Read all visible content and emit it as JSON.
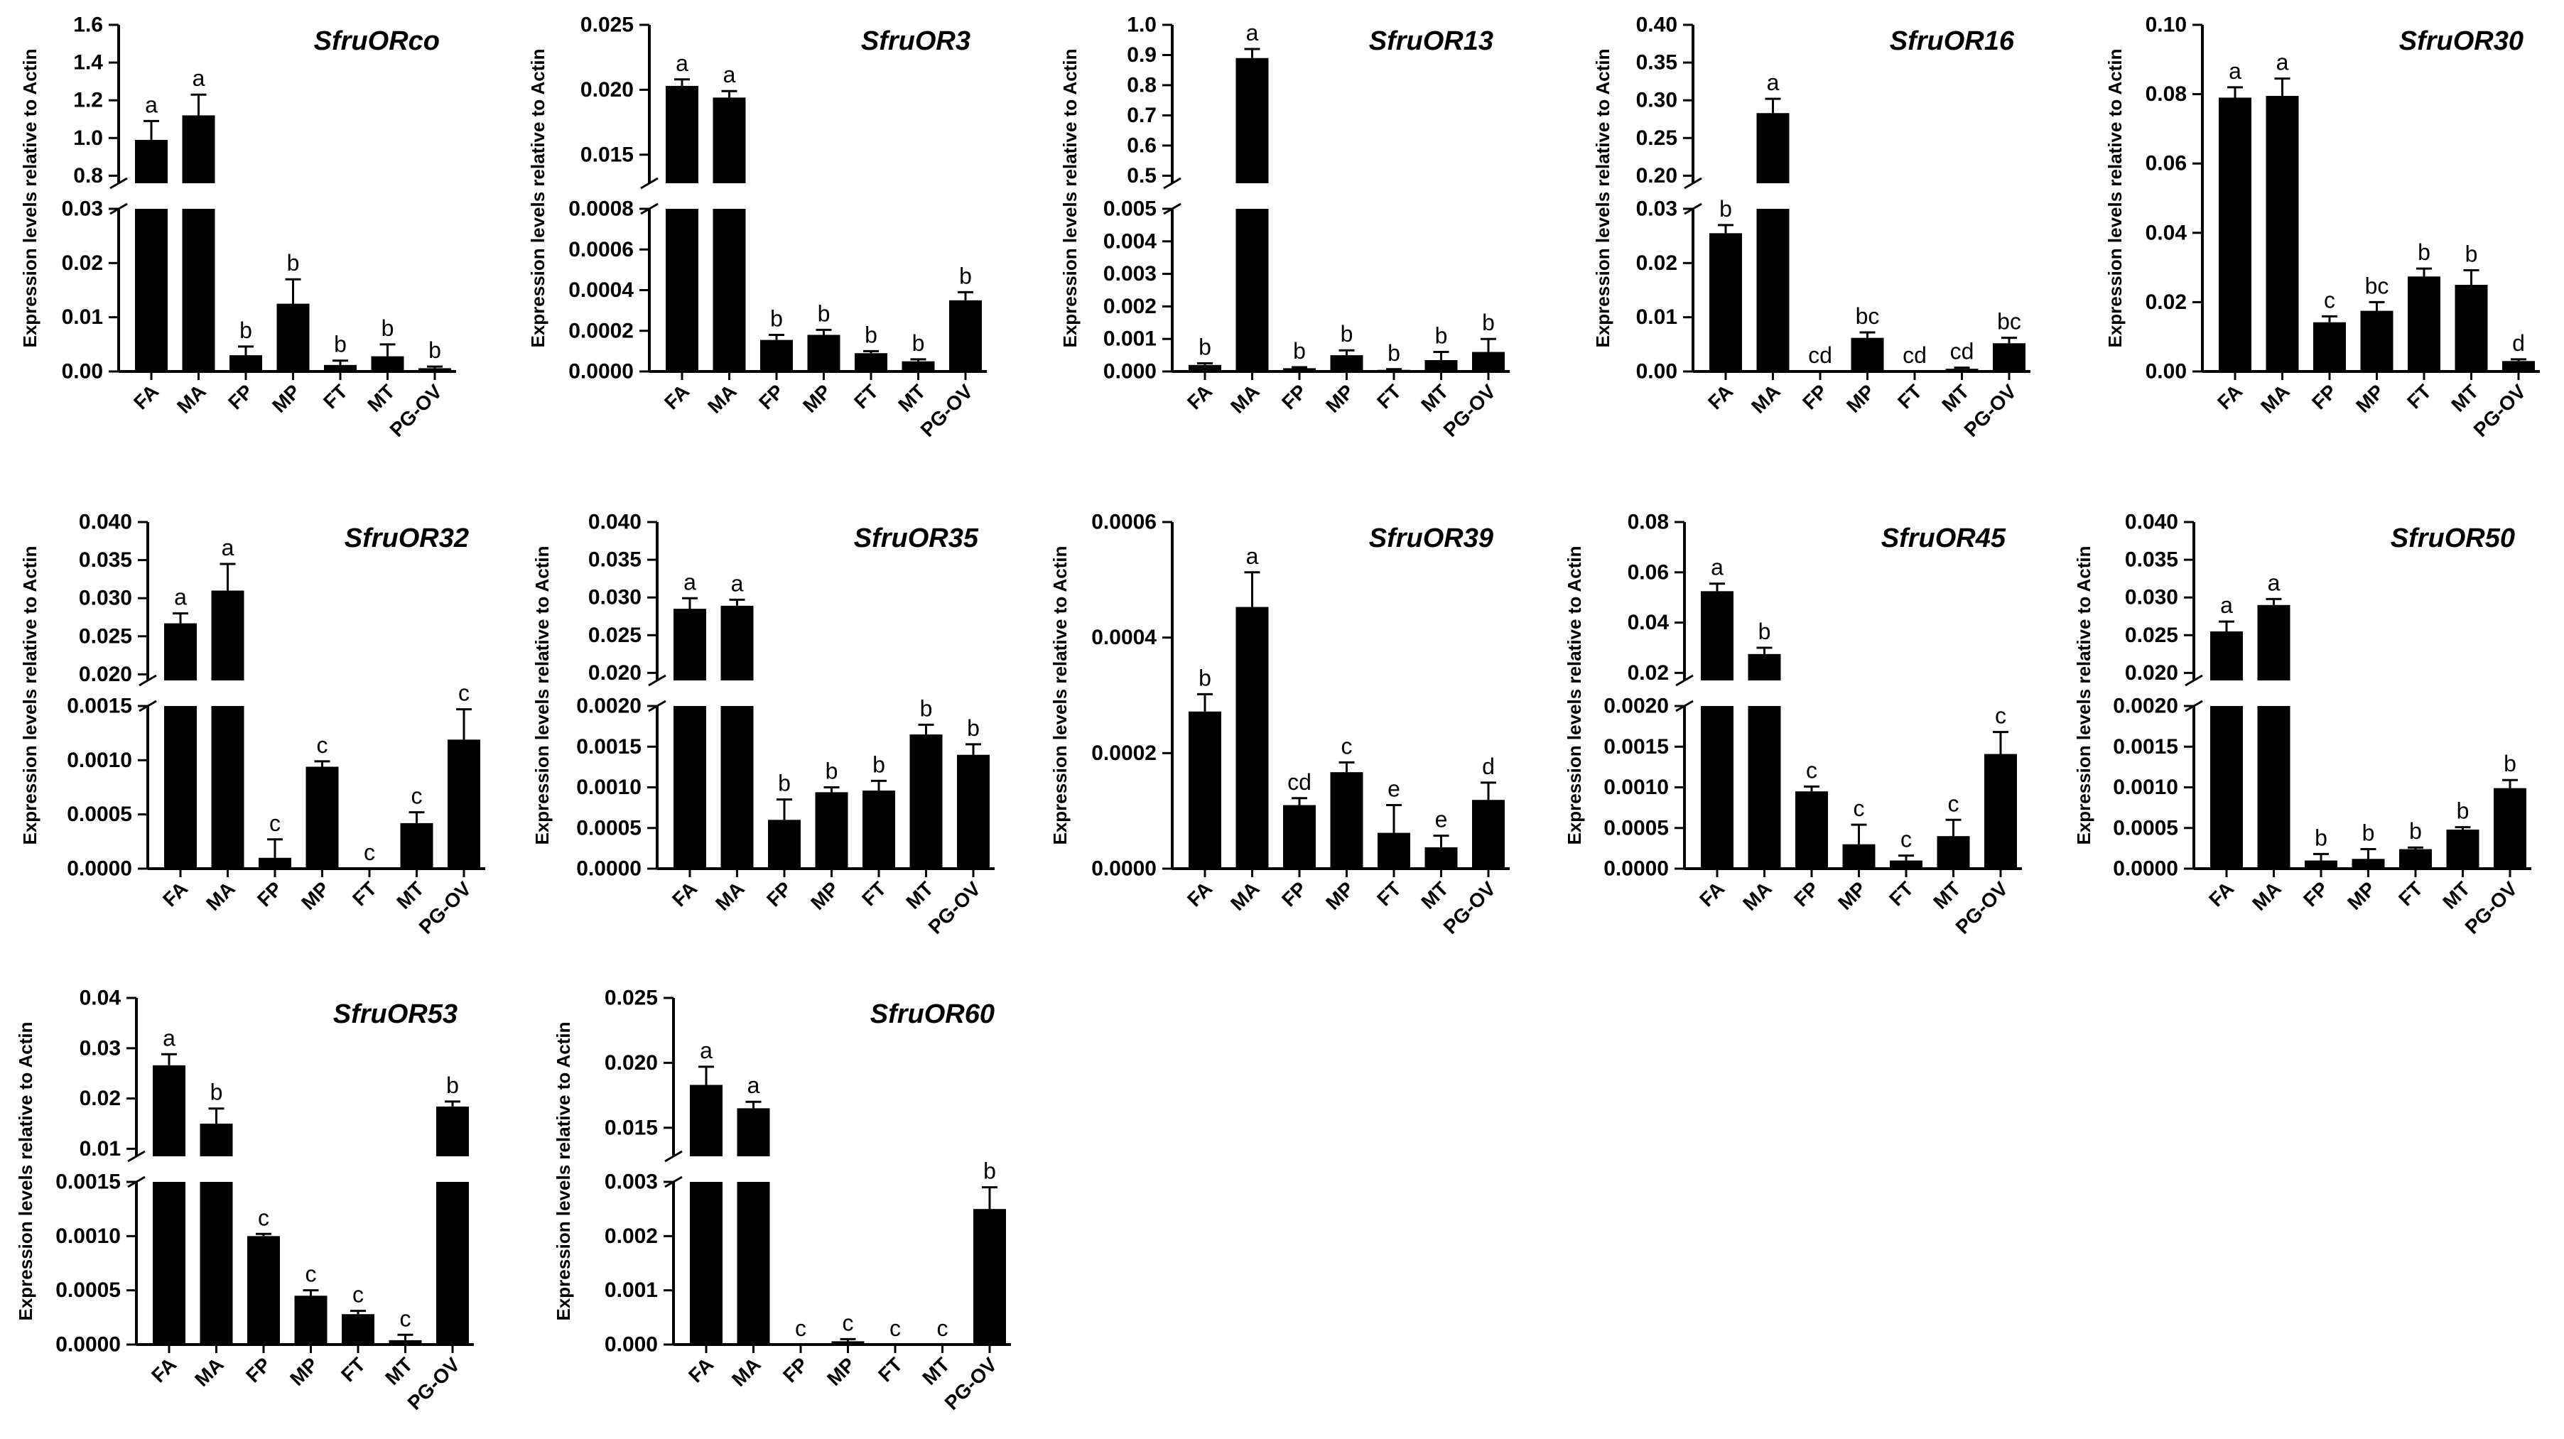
{
  "colors": {
    "bar": "#000000",
    "axis": "#000000",
    "background": "#ffffff"
  },
  "chart_data": [
    {
      "type": "bar",
      "title": "SfruORco",
      "ylabel": "Expression levels relative to Actin",
      "categories": [
        "FA",
        "MA",
        "FP",
        "MP",
        "FT",
        "MT",
        "PG-OV"
      ],
      "values": [
        0.99,
        1.12,
        0.003,
        0.0125,
        0.0012,
        0.0028,
        0.0006
      ],
      "errors": [
        0.1,
        0.11,
        0.0016,
        0.0045,
        0.0008,
        0.0022,
        0.0003
      ],
      "letters": [
        "a",
        "a",
        "b",
        "b",
        "b",
        "b",
        "b"
      ],
      "y_broken": true,
      "ylim_lower": [
        0,
        0.03
      ],
      "ylim_upper": [
        0.76,
        1.6
      ],
      "yticks_lower": [
        "0.00",
        "0.01",
        "0.02",
        "0.03"
      ],
      "yticks_upper": [
        "0.8",
        "1.0",
        "1.2",
        "1.4",
        "1.6"
      ]
    },
    {
      "type": "bar",
      "title": "SfruOR3",
      "ylabel": "Expression levels relative to Actin",
      "categories": [
        "FA",
        "MA",
        "FP",
        "MP",
        "FT",
        "MT",
        "PG-OV"
      ],
      "values": [
        0.0203,
        0.0194,
        0.000155,
        0.00018,
        9e-05,
        5e-05,
        0.00035
      ],
      "errors": [
        0.0005,
        0.0005,
        2.5e-05,
        2.5e-05,
        1e-05,
        1e-05,
        4e-05
      ],
      "letters": [
        "a",
        "a",
        "b",
        "b",
        "b",
        "b",
        "b"
      ],
      "y_broken": true,
      "ylim_lower": [
        0,
        0.0008
      ],
      "ylim_upper": [
        0.0128,
        0.025
      ],
      "yticks_lower": [
        "0.0000",
        "0.0002",
        "0.0004",
        "0.0006",
        "0.0008"
      ],
      "yticks_upper": [
        "0.015",
        "0.020",
        "0.025"
      ]
    },
    {
      "type": "bar",
      "title": "SfruOR13",
      "ylabel": "Expression levels relative to Actin",
      "categories": [
        "FA",
        "MA",
        "FP",
        "MP",
        "FT",
        "MT",
        "PG-OV"
      ],
      "values": [
        0.0002,
        0.89,
        0.0001,
        0.0005,
        5e-05,
        0.00035,
        0.0006
      ],
      "errors": [
        5e-05,
        0.03,
        3e-05,
        0.00015,
        2e-05,
        0.00025,
        0.0004
      ],
      "letters": [
        "b",
        "a",
        "b",
        "b",
        "b",
        "b",
        "b"
      ],
      "y_broken": true,
      "ylim_lower": [
        0,
        0.005
      ],
      "ylim_upper": [
        0.475,
        1.0
      ],
      "yticks_lower": [
        "0.000",
        "0.001",
        "0.002",
        "0.003",
        "0.004",
        "0.005"
      ],
      "yticks_upper": [
        "0.5",
        "0.6",
        "0.7",
        "0.8",
        "0.9",
        "1.0"
      ]
    },
    {
      "type": "bar",
      "title": "SfruOR16",
      "ylabel": "Expression levels relative to Actin",
      "categories": [
        "FA",
        "MA",
        "FP",
        "MP",
        "FT",
        "MT",
        "PG-OV"
      ],
      "values": [
        0.0255,
        0.283,
        0,
        0.0062,
        0,
        0.0005,
        0.0052
      ],
      "errors": [
        0.0015,
        0.019,
        0,
        0.001,
        0,
        0.0002,
        0.001
      ],
      "letters": [
        "b",
        "a",
        "cd",
        "bc",
        "cd",
        "cd",
        "bc"
      ],
      "y_broken": true,
      "ylim_lower": [
        0,
        0.03
      ],
      "ylim_upper": [
        0.19,
        0.4
      ],
      "yticks_lower": [
        "0.00",
        "0.01",
        "0.02",
        "0.03"
      ],
      "yticks_upper": [
        "0.20",
        "0.25",
        "0.30",
        "0.35",
        "0.40"
      ]
    },
    {
      "type": "bar",
      "title": "SfruOR30",
      "ylabel": "Expression levels relative to Actin",
      "categories": [
        "FA",
        "MA",
        "FP",
        "MP",
        "FT",
        "MT",
        "PG-OV"
      ],
      "values": [
        0.079,
        0.0795,
        0.0142,
        0.0175,
        0.0274,
        0.025,
        0.003
      ],
      "errors": [
        0.003,
        0.005,
        0.0017,
        0.0025,
        0.0023,
        0.0042,
        0.0005
      ],
      "letters": [
        "a",
        "a",
        "c",
        "bc",
        "b",
        "b",
        "d"
      ],
      "y_broken": false,
      "ylim": [
        0,
        0.1
      ],
      "yticks": [
        "0.00",
        "0.02",
        "0.04",
        "0.06",
        "0.08",
        "0.10"
      ]
    },
    {
      "type": "bar",
      "title": "SfruOR32",
      "ylabel": "Expression levels relative to Actin",
      "categories": [
        "FA",
        "MA",
        "FP",
        "MP",
        "FT",
        "MT",
        "PG-OV"
      ],
      "values": [
        0.0267,
        0.031,
        0.0001,
        0.00094,
        0,
        0.00042,
        0.00119
      ],
      "errors": [
        0.0013,
        0.0035,
        0.00017,
        5e-05,
        0,
        0.0001,
        0.00028
      ],
      "letters": [
        "a",
        "a",
        "c",
        "c",
        "c",
        "c",
        "c"
      ],
      "y_broken": true,
      "ylim_lower": [
        0,
        0.0015
      ],
      "ylim_upper": [
        0.0192,
        0.04
      ],
      "yticks_lower": [
        "0.0000",
        "0.0005",
        "0.0010",
        "0.0015"
      ],
      "yticks_upper": [
        "0.020",
        "0.025",
        "0.030",
        "0.035",
        "0.040"
      ]
    },
    {
      "type": "bar",
      "title": "SfruOR35",
      "ylabel": "Expression levels relative to Actin",
      "categories": [
        "FA",
        "MA",
        "FP",
        "MP",
        "FT",
        "MT",
        "PG-OV"
      ],
      "values": [
        0.0285,
        0.0289,
        0.0006,
        0.00094,
        0.00096,
        0.00165,
        0.0014
      ],
      "errors": [
        0.0014,
        0.0008,
        0.00025,
        6e-05,
        0.00012,
        0.00012,
        0.00013
      ],
      "letters": [
        "a",
        "a",
        "b",
        "b",
        "b",
        "b",
        "b"
      ],
      "y_broken": true,
      "ylim_lower": [
        0,
        0.002
      ],
      "ylim_upper": [
        0.019,
        0.04
      ],
      "yticks_lower": [
        "0.0000",
        "0.0005",
        "0.0010",
        "0.0015",
        "0.0020"
      ],
      "yticks_upper": [
        "0.020",
        "0.025",
        "0.030",
        "0.035",
        "0.040"
      ]
    },
    {
      "type": "bar",
      "title": "SfruOR39",
      "ylabel": "Expression levels relative to Actin",
      "categories": [
        "FA",
        "MA",
        "FP",
        "MP",
        "FT",
        "MT",
        "PG-OV"
      ],
      "values": [
        0.000272,
        0.000453,
        0.00011,
        0.000167,
        6.2e-05,
        3.7e-05,
        0.000119
      ],
      "errors": [
        3e-05,
        6e-05,
        1.2e-05,
        1.7e-05,
        4.8e-05,
        2e-05,
        3e-05
      ],
      "letters": [
        "b",
        "a",
        "cd",
        "c",
        "e",
        "e",
        "d"
      ],
      "y_broken": false,
      "ylim": [
        0,
        0.0006
      ],
      "yticks": [
        "0.0000",
        "0.0002",
        "0.0004",
        "0.0006"
      ]
    },
    {
      "type": "bar",
      "title": "SfruOR45",
      "ylabel": "Expression levels relative to Actin",
      "categories": [
        "FA",
        "MA",
        "FP",
        "MP",
        "FT",
        "MT",
        "PG-OV"
      ],
      "values": [
        0.0525,
        0.0275,
        0.00095,
        0.0003,
        0.0001,
        0.0004,
        0.00141
      ],
      "errors": [
        0.003,
        0.0025,
        6e-05,
        0.00024,
        6e-05,
        0.0002,
        0.00027
      ],
      "letters": [
        "a",
        "b",
        "c",
        "c",
        "c",
        "c",
        "c"
      ],
      "y_broken": true,
      "ylim_lower": [
        0,
        0.002
      ],
      "ylim_upper": [
        0.017,
        0.08
      ],
      "yticks_lower": [
        "0.0000",
        "0.0005",
        "0.0010",
        "0.0015",
        "0.0020"
      ],
      "yticks_upper": [
        "0.02",
        "0.04",
        "0.06",
        "0.08"
      ]
    },
    {
      "type": "bar",
      "title": "SfruOR50",
      "ylabel": "Expression levels relative to Actin",
      "categories": [
        "FA",
        "MA",
        "FP",
        "MP",
        "FT",
        "MT",
        "PG-OV"
      ],
      "values": [
        0.0255,
        0.029,
        0.0001,
        0.00012,
        0.00024,
        0.00048,
        0.00099
      ],
      "errors": [
        0.0013,
        0.0008,
        8e-05,
        0.00012,
        2e-05,
        3e-05,
        0.0001
      ],
      "letters": [
        "a",
        "a",
        "b",
        "b",
        "b",
        "b",
        "b"
      ],
      "y_broken": true,
      "ylim_lower": [
        0,
        0.002
      ],
      "ylim_upper": [
        0.019,
        0.04
      ],
      "yticks_lower": [
        "0.0000",
        "0.0005",
        "0.0010",
        "0.0015",
        "0.0020"
      ],
      "yticks_upper": [
        "0.020",
        "0.025",
        "0.030",
        "0.035",
        "0.040"
      ]
    },
    {
      "type": "bar",
      "title": "SfruOR53",
      "ylabel": "Expression levels relative to Actin",
      "categories": [
        "FA",
        "MA",
        "FP",
        "MP",
        "FT",
        "MT",
        "PG-OV"
      ],
      "values": [
        0.0266,
        0.015,
        0.001,
        0.00045,
        0.00028,
        4e-05,
        0.0184
      ],
      "errors": [
        0.0022,
        0.003,
        2e-05,
        5e-05,
        3e-05,
        5e-05,
        0.001
      ],
      "letters": [
        "a",
        "b",
        "c",
        "c",
        "c",
        "c",
        "b"
      ],
      "y_broken": true,
      "ylim_lower": [
        0,
        0.0015
      ],
      "ylim_upper": [
        0.0085,
        0.04
      ],
      "yticks_lower": [
        "0.0000",
        "0.0005",
        "0.0010",
        "0.0015"
      ],
      "yticks_upper": [
        "0.01",
        "0.02",
        "0.03",
        "0.04"
      ]
    },
    {
      "type": "bar",
      "title": "SfruOR60",
      "ylabel": "Expression levels relative to Actin",
      "categories": [
        "FA",
        "MA",
        "FP",
        "MP",
        "FT",
        "MT",
        "PG-OV"
      ],
      "values": [
        0.0183,
        0.0165,
        0,
        6e-05,
        0,
        0,
        0.0025
      ],
      "errors": [
        0.0014,
        0.0005,
        0,
        4e-05,
        0,
        0,
        0.0004
      ],
      "letters": [
        "a",
        "a",
        "c",
        "c",
        "c",
        "c",
        "b"
      ],
      "y_broken": true,
      "ylim_lower": [
        0,
        0.003
      ],
      "ylim_upper": [
        0.0128,
        0.025
      ],
      "yticks_lower": [
        "0.000",
        "0.001",
        "0.002",
        "0.003"
      ],
      "yticks_upper": [
        "0.015",
        "0.020",
        "0.025"
      ]
    }
  ]
}
